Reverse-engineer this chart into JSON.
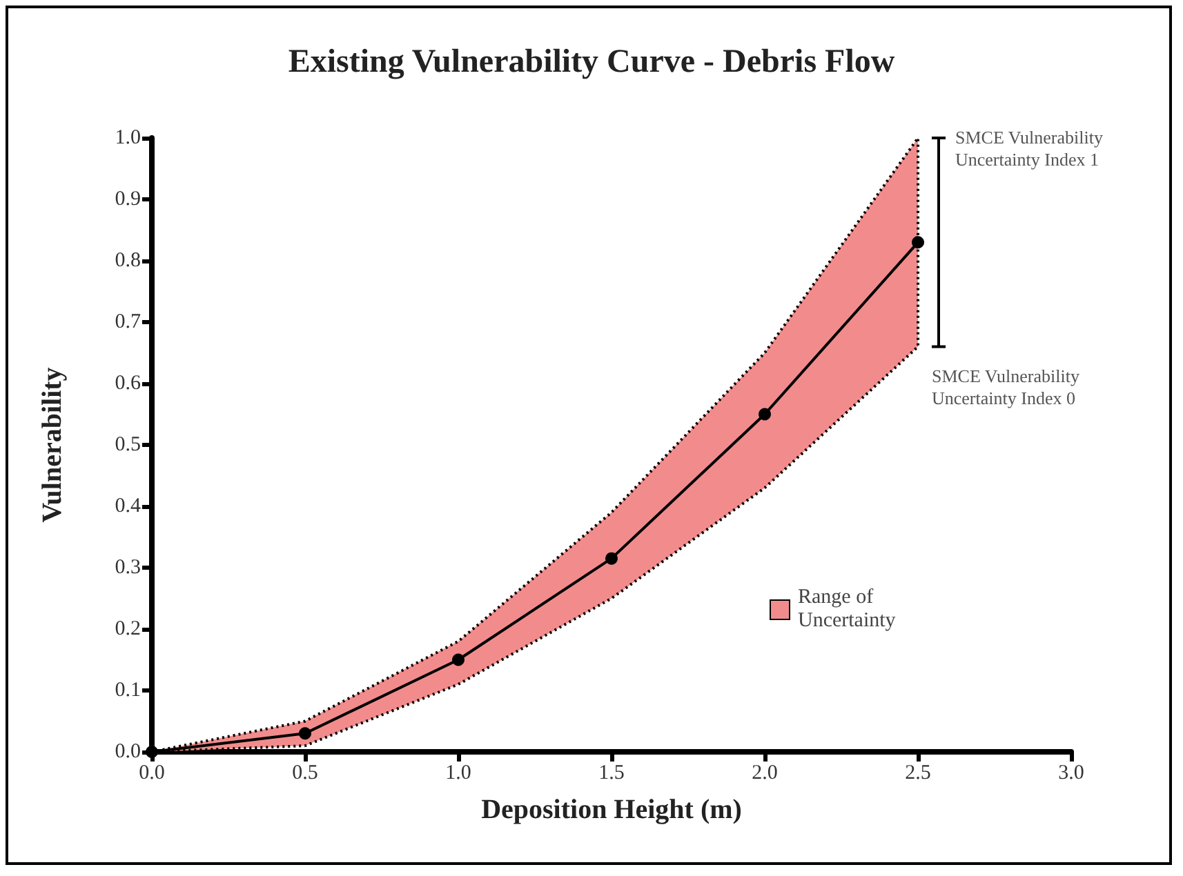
{
  "chart_data": {
    "type": "line",
    "title": "Existing Vulnerability Curve - Debris Flow",
    "xlabel": "Deposition Height (m)",
    "ylabel": "Vulnerability",
    "x": [
      0,
      0.5,
      1.0,
      1.5,
      2.0,
      2.5
    ],
    "series": [
      {
        "color": "#000000",
        "values": [
          0,
          0.03,
          0.15,
          0.315,
          0.55,
          0.83
        ],
        "lower": [
          0,
          0.01,
          0.11,
          0.25,
          0.43,
          0.66
        ],
        "upper": [
          0,
          0.05,
          0.18,
          0.39,
          0.65,
          1.0
        ]
      }
    ],
    "annotations": [
      {
        "text": "SMCE Vulnerability Uncertainty Index 1",
        "x": 2.5,
        "y": 1.0
      },
      {
        "text": "SMCE Vulnerability Uncertainty Index 0",
        "x": 2.5,
        "y": 0.66
      },
      "Range of Uncertainty"
    ],
    "xlim": [
      0,
      3.0
    ],
    "ylim": [
      0,
      1.0
    ],
    "xticks": [
      {
        "value": 0,
        "label": "0.0"
      },
      {
        "value": 0.5,
        "label": "0.5"
      },
      {
        "value": 1,
        "label": "1.0"
      },
      {
        "value": 1.5,
        "label": "1.5"
      },
      {
        "value": 2,
        "label": "2.0"
      },
      {
        "value": 2.5,
        "label": "2.5"
      },
      {
        "value": 3,
        "label": "3.0"
      }
    ],
    "yticks": [
      {
        "value": 0,
        "label": "0.0"
      },
      {
        "value": 0.1,
        "label": "0.1"
      },
      {
        "value": 0.2,
        "label": "0.2"
      },
      {
        "value": 0.3,
        "label": "0.3"
      },
      {
        "value": 0.4,
        "label": "0.4"
      },
      {
        "value": 0.5,
        "label": "0.5"
      },
      {
        "value": 0.6,
        "label": "0.6"
      },
      {
        "value": 0.7,
        "label": "0.7"
      },
      {
        "value": 0.8,
        "label": "0.8"
      },
      {
        "value": 0.9,
        "label": "0.9"
      },
      {
        "value": 1,
        "label": "1.0"
      }
    ],
    "marker": "circle",
    "line_style": "solid"
  }
}
